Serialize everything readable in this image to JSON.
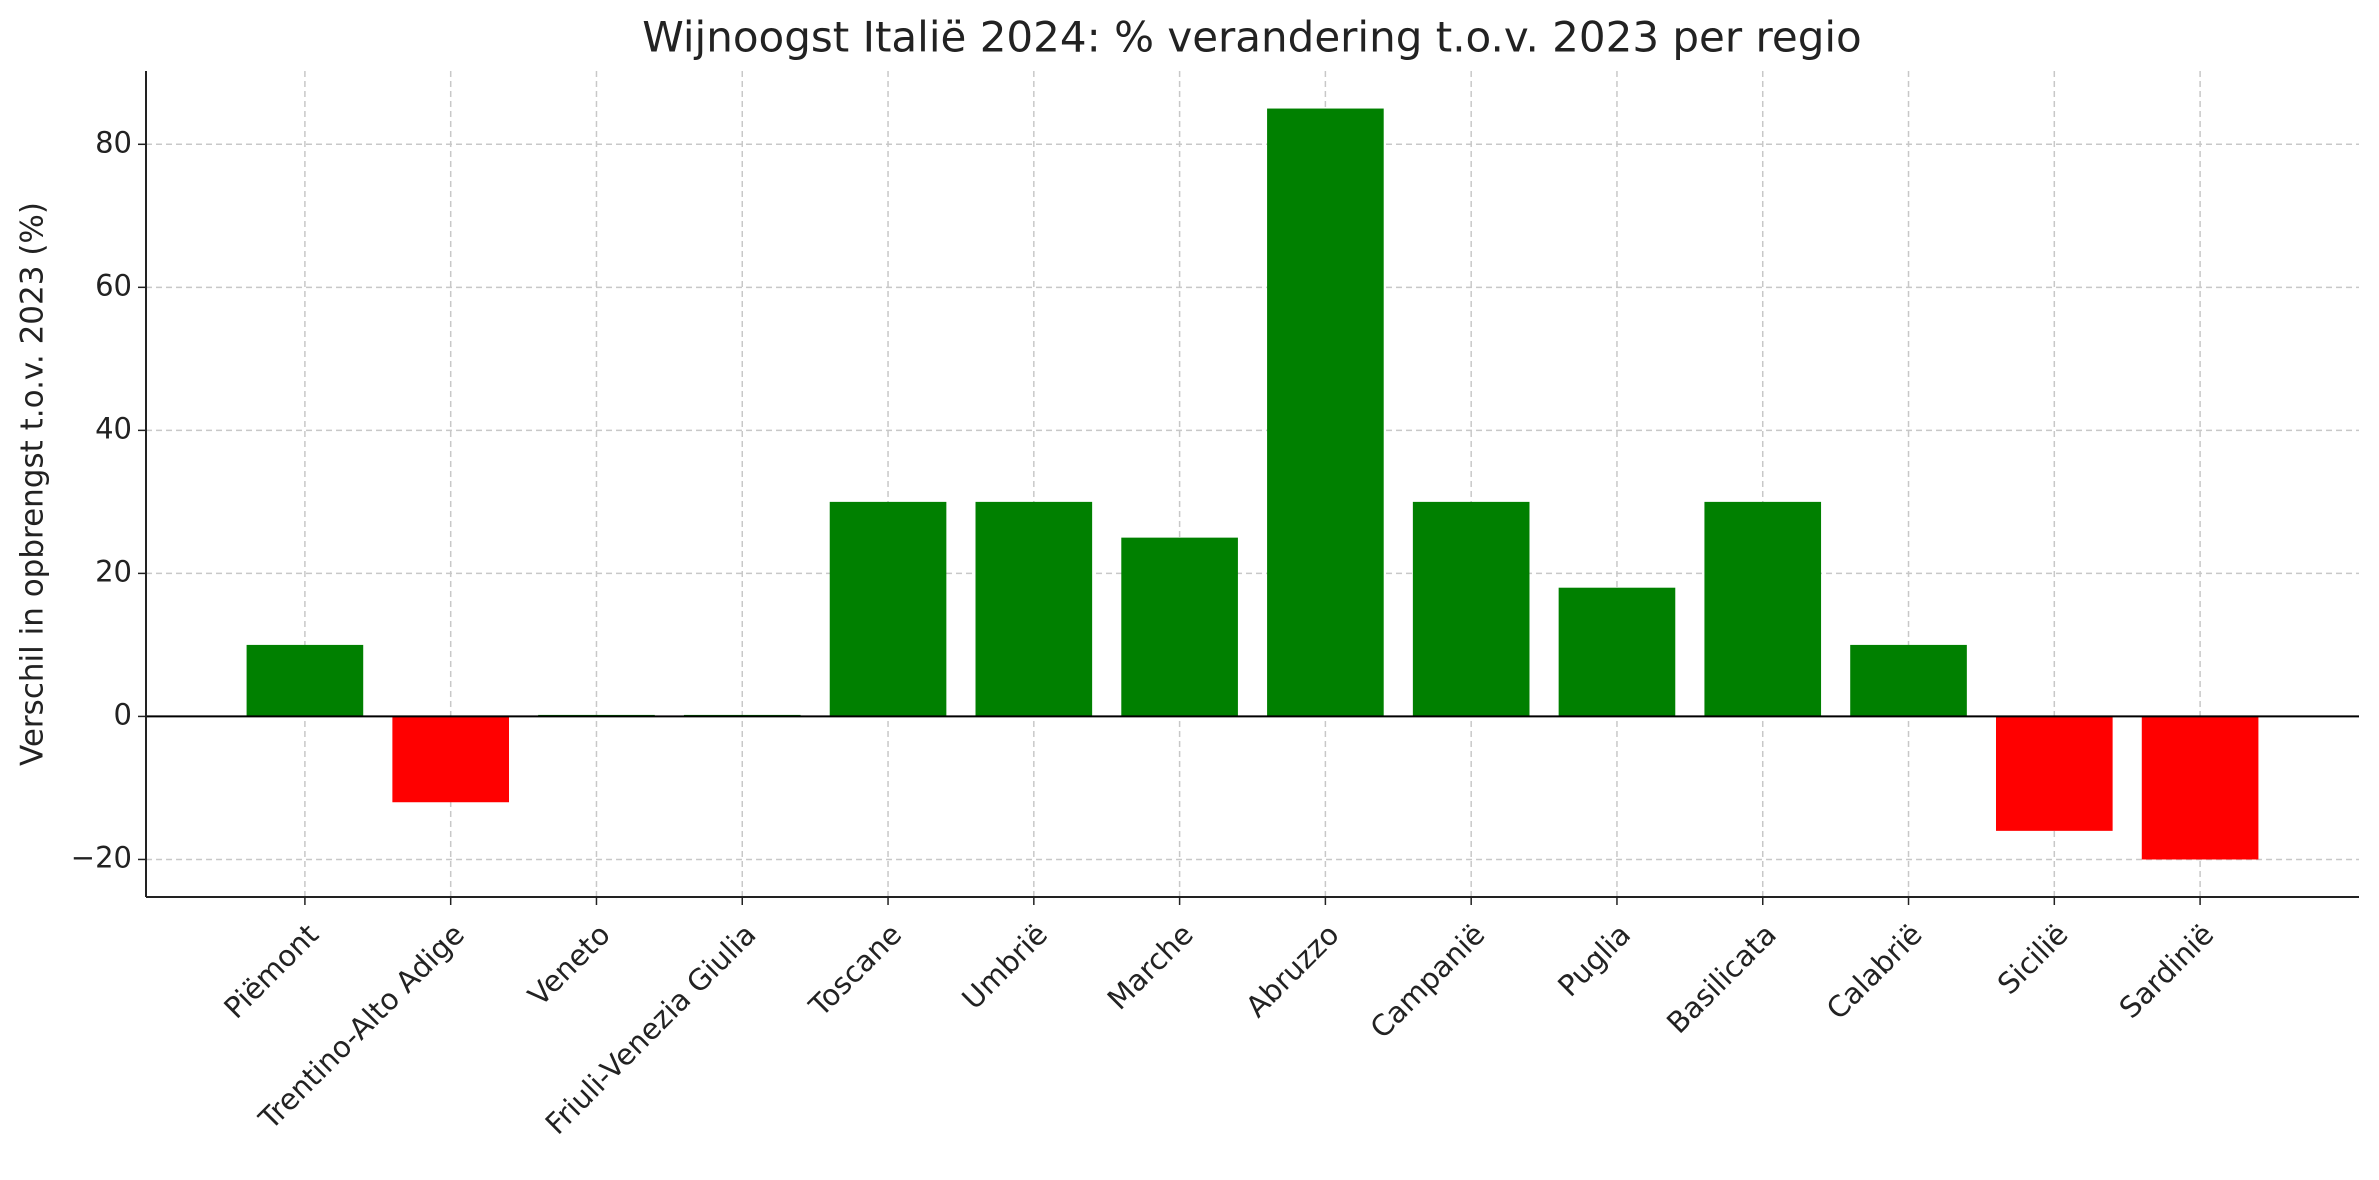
{
  "chart_data": {
    "type": "bar",
    "title": "Wijnoogst Italië 2024: % verandering t.o.v. 2023 per regio",
    "y_label": "Verschil in opbrengst t.o.v. 2023 (%)",
    "categories": [
      "Piëmont",
      "Trentino-Alto Adige",
      "Veneto",
      "Friuli-Venezia Giulia",
      "Toscane",
      "Umbrië",
      "Marche",
      "Abruzzo",
      "Campanië",
      "Puglia",
      "Basilicata",
      "Calabrië",
      "Sicilië",
      "Sardinië"
    ],
    "values": [
      10,
      -12,
      0,
      0,
      30,
      30,
      25,
      85,
      30,
      18,
      30,
      10,
      -16,
      -20
    ],
    "colors": [
      "green",
      "red",
      "green",
      "green",
      "green",
      "green",
      "green",
      "green",
      "green",
      "green",
      "green",
      "green",
      "red",
      "red"
    ],
    "ylim": [
      -25.25,
      90.25
    ],
    "yticks": [
      {
        "value": -20,
        "label": "−20"
      },
      0,
      20,
      40,
      60,
      80
    ],
    "grid": true
  }
}
